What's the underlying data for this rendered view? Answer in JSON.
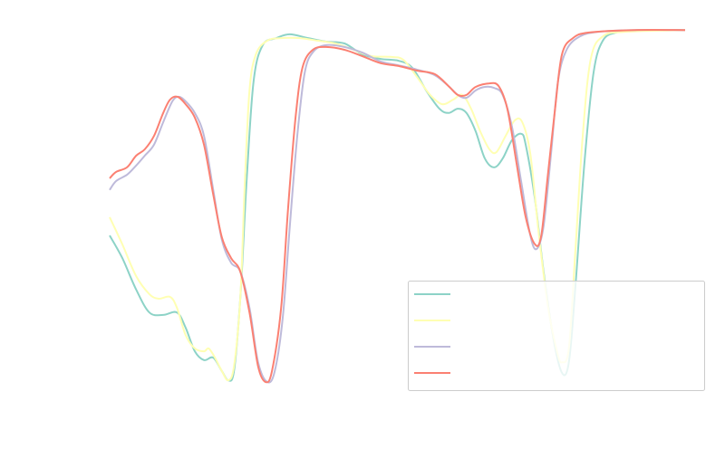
{
  "chart_data": {
    "type": "line",
    "title": "",
    "xlabel": "",
    "ylabel": "",
    "xlim": [
      0,
      100
    ],
    "ylim": [
      0,
      100
    ],
    "grid": false,
    "legend_placement": "lower-right",
    "series": [
      {
        "color": "#8dd3c7",
        "points": [
          [
            0,
            41.5
          ],
          [
            2.2,
            35.1
          ],
          [
            4.6,
            26.2
          ],
          [
            6.9,
            19.7
          ],
          [
            9.3,
            19.0
          ],
          [
            11.7,
            19.7
          ],
          [
            13.2,
            15.4
          ],
          [
            14.8,
            8.7
          ],
          [
            16.4,
            6.2
          ],
          [
            18.0,
            6.9
          ],
          [
            19.5,
            3.1
          ],
          [
            20.6,
            0.5
          ],
          [
            21.6,
            3.1
          ],
          [
            22.7,
            23.6
          ],
          [
            23.8,
            56.9
          ],
          [
            25.0,
            85.1
          ],
          [
            26.6,
            95.4
          ],
          [
            29.0,
            97.4
          ],
          [
            31.3,
            98.5
          ],
          [
            34.5,
            97.4
          ],
          [
            37.6,
            96.4
          ],
          [
            40.8,
            95.9
          ],
          [
            43.9,
            92.8
          ],
          [
            47.1,
            91.5
          ],
          [
            50.2,
            91.0
          ],
          [
            52.6,
            89.0
          ],
          [
            55.0,
            82.6
          ],
          [
            57.3,
            77.4
          ],
          [
            58.9,
            76.2
          ],
          [
            60.5,
            77.4
          ],
          [
            62.0,
            76.2
          ],
          [
            63.6,
            71.0
          ],
          [
            65.2,
            63.3
          ],
          [
            66.8,
            60.8
          ],
          [
            68.3,
            63.3
          ],
          [
            69.9,
            68.5
          ],
          [
            71.5,
            70.3
          ],
          [
            72.3,
            67.2
          ],
          [
            73.9,
            51.8
          ],
          [
            75.4,
            31.3
          ],
          [
            77.0,
            13.3
          ],
          [
            78.6,
            2.6
          ],
          [
            79.8,
            5.6
          ],
          [
            80.9,
            26.2
          ],
          [
            82.5,
            62.1
          ],
          [
            84.1,
            87.7
          ],
          [
            85.7,
            96.7
          ],
          [
            88.0,
            99.0
          ],
          [
            91.2,
            99.5
          ],
          [
            100,
            99.7
          ]
        ]
      },
      {
        "color": "#ffffb3",
        "points": [
          [
            0,
            46.7
          ],
          [
            2.2,
            39.0
          ],
          [
            4.6,
            30.0
          ],
          [
            6.9,
            24.9
          ],
          [
            8.5,
            23.6
          ],
          [
            10.5,
            24.1
          ],
          [
            11.7,
            21.0
          ],
          [
            13.2,
            13.3
          ],
          [
            14.8,
            9.5
          ],
          [
            16.4,
            8.7
          ],
          [
            17.2,
            9.5
          ],
          [
            18.3,
            6.9
          ],
          [
            19.5,
            3.1
          ],
          [
            20.6,
            0.5
          ],
          [
            21.6,
            4.4
          ],
          [
            22.7,
            23.6
          ],
          [
            23.5,
            56.9
          ],
          [
            24.3,
            82.6
          ],
          [
            25.4,
            92.8
          ],
          [
            27.4,
            96.7
          ],
          [
            29.8,
            97.4
          ],
          [
            33.0,
            97.4
          ],
          [
            36.1,
            96.7
          ],
          [
            39.2,
            95.9
          ],
          [
            42.4,
            94.1
          ],
          [
            45.5,
            92.3
          ],
          [
            48.7,
            92.1
          ],
          [
            51.0,
            91.3
          ],
          [
            53.4,
            86.4
          ],
          [
            55.7,
            81.3
          ],
          [
            57.8,
            78.7
          ],
          [
            59.7,
            80.0
          ],
          [
            61.3,
            81.3
          ],
          [
            62.8,
            77.4
          ],
          [
            64.4,
            71.0
          ],
          [
            66.0,
            65.9
          ],
          [
            67.2,
            65.1
          ],
          [
            68.8,
            69.7
          ],
          [
            70.4,
            74.1
          ],
          [
            71.7,
            73.6
          ],
          [
            73.1,
            64.6
          ],
          [
            74.6,
            41.5
          ],
          [
            76.2,
            21.0
          ],
          [
            77.8,
            8.2
          ],
          [
            78.6,
            5.6
          ],
          [
            79.8,
            9.5
          ],
          [
            80.9,
            36.4
          ],
          [
            82.2,
            69.7
          ],
          [
            83.6,
            91.5
          ],
          [
            85.7,
            97.9
          ],
          [
            89.6,
            99.2
          ],
          [
            100,
            99.7
          ]
        ]
      },
      {
        "color": "#bebada",
        "points": [
          [
            0,
            54.4
          ],
          [
            1.1,
            56.9
          ],
          [
            3.0,
            58.7
          ],
          [
            4.6,
            61.3
          ],
          [
            6.1,
            64.1
          ],
          [
            7.7,
            67.2
          ],
          [
            9.3,
            73.6
          ],
          [
            10.9,
            79.5
          ],
          [
            12.0,
            80.8
          ],
          [
            13.2,
            79.5
          ],
          [
            14.8,
            76.2
          ],
          [
            16.4,
            69.7
          ],
          [
            18.0,
            54.4
          ],
          [
            19.5,
            40.3
          ],
          [
            21.1,
            33.8
          ],
          [
            22.7,
            31.3
          ],
          [
            24.3,
            21.0
          ],
          [
            25.8,
            5.6
          ],
          [
            27.4,
            0
          ],
          [
            28.7,
            3.1
          ],
          [
            30.1,
            18.5
          ],
          [
            31.3,
            44.1
          ],
          [
            32.6,
            69.7
          ],
          [
            33.9,
            87.7
          ],
          [
            35.4,
            93.6
          ],
          [
            37.6,
            95.4
          ],
          [
            40.8,
            94.9
          ],
          [
            43.9,
            93.3
          ],
          [
            47.1,
            90.8
          ],
          [
            50.2,
            89.7
          ],
          [
            53.4,
            88.5
          ],
          [
            56.5,
            86.9
          ],
          [
            58.9,
            83.8
          ],
          [
            60.5,
            81.3
          ],
          [
            62.0,
            80.5
          ],
          [
            63.6,
            82.6
          ],
          [
            65.2,
            83.6
          ],
          [
            66.8,
            83.3
          ],
          [
            68.3,
            81.3
          ],
          [
            69.9,
            72.3
          ],
          [
            71.5,
            56.9
          ],
          [
            73.1,
            41.5
          ],
          [
            74.2,
            37.7
          ],
          [
            75.4,
            44.1
          ],
          [
            76.7,
            64.6
          ],
          [
            77.9,
            85.1
          ],
          [
            79.4,
            94.1
          ],
          [
            81.7,
            97.9
          ],
          [
            84.9,
            99.2
          ],
          [
            91.2,
            99.7
          ],
          [
            100,
            99.7
          ]
        ]
      },
      {
        "color": "#fb8072",
        "points": [
          [
            0,
            57.7
          ],
          [
            1.1,
            59.5
          ],
          [
            3.0,
            60.8
          ],
          [
            4.6,
            64.1
          ],
          [
            6.1,
            65.9
          ],
          [
            7.7,
            69.7
          ],
          [
            9.3,
            76.2
          ],
          [
            10.5,
            80.0
          ],
          [
            11.8,
            80.8
          ],
          [
            13.2,
            78.7
          ],
          [
            14.8,
            74.9
          ],
          [
            16.4,
            67.2
          ],
          [
            18.0,
            53.1
          ],
          [
            19.5,
            41.0
          ],
          [
            21.1,
            35.1
          ],
          [
            22.7,
            31.3
          ],
          [
            24.3,
            19.7
          ],
          [
            25.8,
            4.4
          ],
          [
            27.1,
            0
          ],
          [
            28.2,
            3.1
          ],
          [
            29.8,
            21.0
          ],
          [
            31.0,
            49.2
          ],
          [
            32.3,
            74.9
          ],
          [
            33.5,
            89.0
          ],
          [
            35.3,
            94.1
          ],
          [
            37.6,
            94.9
          ],
          [
            40.8,
            94.1
          ],
          [
            43.9,
            92.3
          ],
          [
            47.1,
            90.3
          ],
          [
            50.2,
            89.5
          ],
          [
            53.4,
            88.2
          ],
          [
            56.5,
            87.2
          ],
          [
            58.9,
            83.8
          ],
          [
            60.5,
            81.3
          ],
          [
            62.0,
            81.3
          ],
          [
            63.6,
            83.6
          ],
          [
            66.0,
            84.6
          ],
          [
            67.6,
            83.8
          ],
          [
            69.1,
            77.4
          ],
          [
            70.7,
            62.1
          ],
          [
            72.3,
            46.7
          ],
          [
            73.9,
            39.0
          ],
          [
            75.0,
            41.5
          ],
          [
            76.2,
            59.5
          ],
          [
            77.4,
            77.4
          ],
          [
            78.6,
            92.8
          ],
          [
            80.5,
            97.4
          ],
          [
            83.3,
            99.0
          ],
          [
            91.2,
            99.7
          ],
          [
            100,
            99.7
          ]
        ]
      }
    ]
  }
}
